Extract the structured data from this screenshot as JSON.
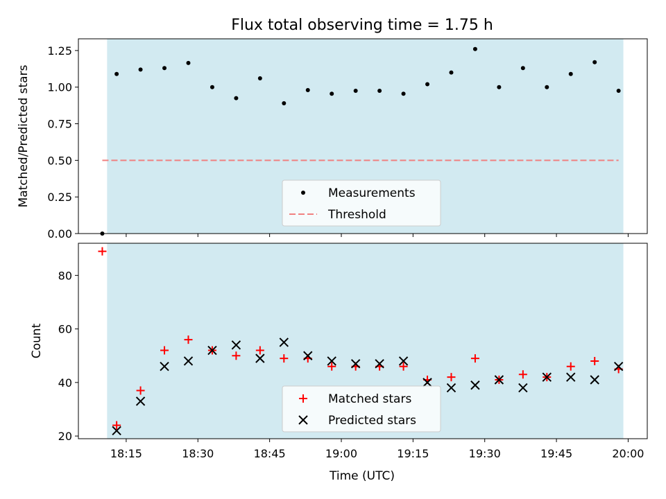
{
  "figure": {
    "title": "Flux total observing time = 1.75 h",
    "xlabel": "Time (UTC)"
  },
  "colors": {
    "shade": "#add8e6",
    "measurement": "#000000",
    "threshold": "#f08080",
    "matched": "#ff0000",
    "predicted": "#000000"
  },
  "chart_data": [
    {
      "type": "scatter",
      "ylabel": "Matched/Predicted stars",
      "ylim": [
        0.0,
        1.33
      ],
      "yticks": [
        0.0,
        0.25,
        0.5,
        0.75,
        1.0,
        1.25
      ],
      "ytick_labels": [
        "0.00",
        "0.25",
        "0.50",
        "0.75",
        "1.00",
        "1.25"
      ],
      "xlim": [
        "18:05",
        "20:04"
      ],
      "xticks": [
        "18:15",
        "18:30",
        "18:45",
        "19:00",
        "19:15",
        "19:30",
        "19:45",
        "20:00"
      ],
      "xtick_labels_shown": false,
      "shaded_span": [
        "18:11",
        "19:59"
      ],
      "grid": false,
      "legend_position": "lower-center",
      "series": [
        {
          "name": "Measurements",
          "kind": "dots",
          "x": [
            "18:10",
            "18:13",
            "18:18",
            "18:23",
            "18:28",
            "18:33",
            "18:38",
            "18:43",
            "18:48",
            "18:53",
            "18:58",
            "19:03",
            "19:08",
            "19:13",
            "19:18",
            "19:23",
            "19:28",
            "19:33",
            "19:38",
            "19:43",
            "19:48",
            "19:53",
            "19:58"
          ],
          "y": [
            0.0,
            1.09,
            1.12,
            1.13,
            1.165,
            1.0,
            0.925,
            1.06,
            0.89,
            0.98,
            0.955,
            0.975,
            0.975,
            0.955,
            1.02,
            1.1,
            1.26,
            1.0,
            1.13,
            1.0,
            1.09,
            1.17,
            0.975
          ]
        },
        {
          "name": "Threshold",
          "kind": "dashed-line",
          "x": [
            "18:10",
            "19:58"
          ],
          "y": [
            0.5,
            0.5
          ]
        }
      ]
    },
    {
      "type": "scatter",
      "ylabel": "Count",
      "ylim": [
        19,
        92
      ],
      "yticks": [
        20,
        40,
        60,
        80
      ],
      "ytick_labels": [
        "20",
        "40",
        "60",
        "80"
      ],
      "xlim": [
        "18:05",
        "20:04"
      ],
      "xticks": [
        "18:15",
        "18:30",
        "18:45",
        "19:00",
        "19:15",
        "19:30",
        "19:45",
        "20:00"
      ],
      "xtick_labels": [
        "18:15",
        "18:30",
        "18:45",
        "19:00",
        "19:15",
        "19:30",
        "19:45",
        "20:00"
      ],
      "shaded_span": [
        "18:11",
        "19:59"
      ],
      "grid": false,
      "legend_position": "lower-center",
      "series": [
        {
          "name": "Matched stars",
          "kind": "plus",
          "x": [
            "18:10",
            "18:13",
            "18:18",
            "18:23",
            "18:28",
            "18:33",
            "18:38",
            "18:43",
            "18:48",
            "18:53",
            "18:58",
            "19:03",
            "19:08",
            "19:13",
            "19:18",
            "19:23",
            "19:28",
            "19:33",
            "19:38",
            "19:43",
            "19:48",
            "19:53",
            "19:58"
          ],
          "y": [
            89,
            24,
            37,
            52,
            56,
            52,
            50,
            52,
            49,
            49,
            46,
            46,
            46,
            46,
            41,
            42,
            49,
            41,
            43,
            42,
            46,
            48,
            45
          ]
        },
        {
          "name": "Predicted stars",
          "kind": "x",
          "x": [
            "18:10",
            "18:13",
            "18:18",
            "18:23",
            "18:28",
            "18:33",
            "18:38",
            "18:43",
            "18:48",
            "18:53",
            "18:58",
            "19:03",
            "19:08",
            "19:13",
            "19:18",
            "19:23",
            "19:28",
            "19:33",
            "19:38",
            "19:43",
            "19:48",
            "19:53",
            "19:58"
          ],
          "y": [
            null,
            22,
            33,
            46,
            48,
            52,
            54,
            49,
            55,
            50,
            48,
            47,
            47,
            48,
            40,
            38,
            39,
            41,
            38,
            42,
            42,
            41,
            46
          ]
        }
      ]
    }
  ]
}
